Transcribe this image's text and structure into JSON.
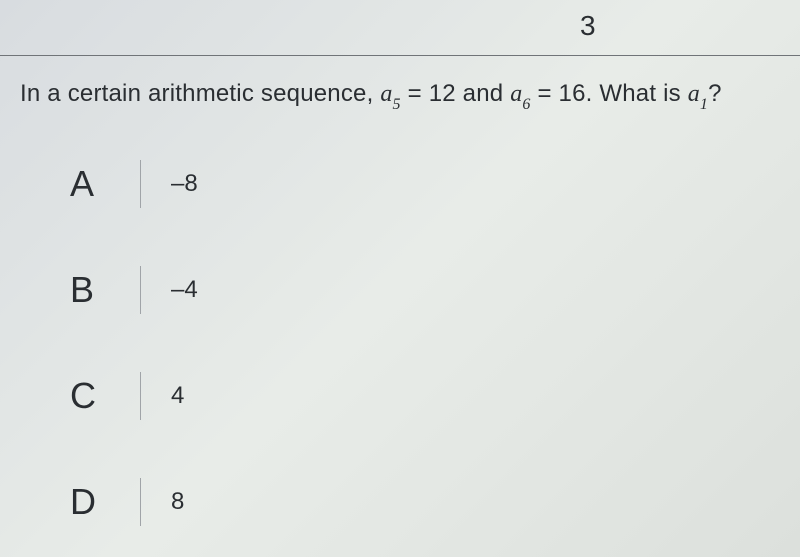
{
  "page_number": "3",
  "question": {
    "prefix": "In a certain arithmetic sequence, ",
    "term1_var": "a",
    "term1_sub": "5",
    "eq1": " = ",
    "val1": "12",
    "and": " and ",
    "term2_var": "a",
    "term2_sub": "6",
    "eq2": " = ",
    "val2": "16",
    "ask_prefix": ". What is ",
    "ask_var": "a",
    "ask_sub": "1",
    "ask_suffix": "?"
  },
  "choices": [
    {
      "letter": "A",
      "value": "–8"
    },
    {
      "letter": "B",
      "value": "–4"
    },
    {
      "letter": "C",
      "value": "4"
    },
    {
      "letter": "D",
      "value": "8"
    }
  ],
  "style": {
    "background_colors": [
      "#d8dce0",
      "#e8ece8",
      "#dce0dc"
    ],
    "text_color": "#2a2e32",
    "divider_color": "#707478",
    "vline_color": "#a0a4a8",
    "page_number_fontsize": 28,
    "question_fontsize": 24,
    "choice_letter_fontsize": 36,
    "choice_value_fontsize": 24,
    "choice_gap": 58
  }
}
